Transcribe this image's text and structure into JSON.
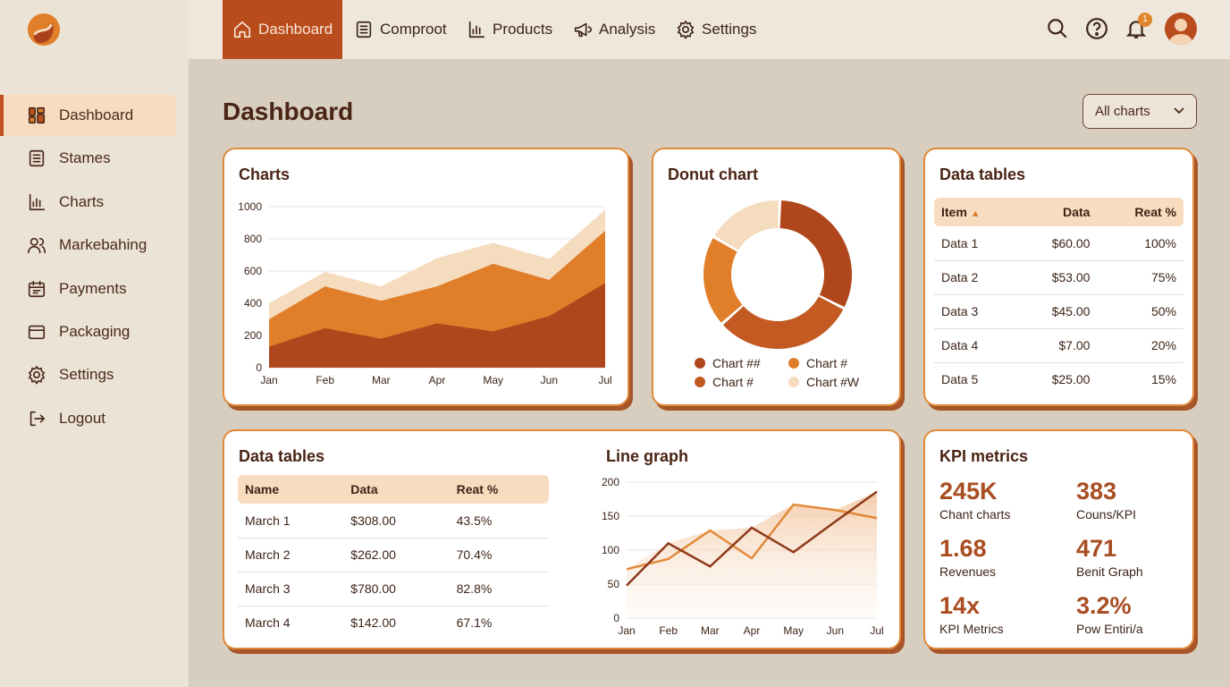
{
  "brand": {
    "logo": "swirl-logo"
  },
  "sidebar": {
    "items": [
      {
        "label": "Dashboard",
        "icon": "grid-icon",
        "active": true
      },
      {
        "label": "Stames",
        "icon": "document-icon"
      },
      {
        "label": "Charts",
        "icon": "bar-chart-icon"
      },
      {
        "label": "Markebahing",
        "icon": "users-icon"
      },
      {
        "label": "Payments",
        "icon": "calendar-icon"
      },
      {
        "label": "Packaging",
        "icon": "card-icon"
      },
      {
        "label": "Settings",
        "icon": "gear-icon"
      },
      {
        "label": "Logout",
        "icon": "logout-icon"
      }
    ]
  },
  "topnav": {
    "tabs": [
      {
        "label": "Dashboard",
        "icon": "home-icon",
        "active": true
      },
      {
        "label": "Comproot",
        "icon": "document-icon"
      },
      {
        "label": "Products",
        "icon": "bar-chart-icon"
      },
      {
        "label": "Analysis",
        "icon": "megaphone-icon"
      },
      {
        "label": "Settings",
        "icon": "gear-icon"
      }
    ],
    "notifications": "1"
  },
  "page": {
    "title": "Dashboard",
    "filter": "All charts"
  },
  "colors": {
    "dark": "#b0461c",
    "orange": "#e07e2a",
    "mid": "#c25a22",
    "light": "#f5dcbf",
    "border": "#e08a3a"
  },
  "area_card": {
    "title": "Charts"
  },
  "donut_card": {
    "title": "Donut chart"
  },
  "table1": {
    "title": "Data tables",
    "headers": [
      "Item",
      "Data",
      "Reat %"
    ],
    "rows": [
      [
        "Data 1",
        "$60.00",
        "100%"
      ],
      [
        "Data 2",
        "$53.00",
        "75%"
      ],
      [
        "Data 3",
        "$45.00",
        "50%"
      ],
      [
        "Data 4",
        "$7.00",
        "20%"
      ],
      [
        "Data 5",
        "$25.00",
        "15%"
      ]
    ]
  },
  "table2": {
    "title": "Data tables",
    "headers": [
      "Name",
      "Data",
      "Reat %"
    ],
    "rows": [
      [
        "March 1",
        "$308.00",
        "43.5%"
      ],
      [
        "March 2",
        "$262.00",
        "70.4%"
      ],
      [
        "March 3",
        "$780.00",
        "82.8%"
      ],
      [
        "March 4",
        "$142.00",
        "67.1%"
      ]
    ]
  },
  "line_card": {
    "title": "Line graph"
  },
  "kpi": {
    "title": "KPI metrics",
    "items": [
      {
        "value": "245K",
        "label": "Chant charts"
      },
      {
        "value": "383",
        "label": "Couns/KPI"
      },
      {
        "value": "1.68",
        "label": "Revenues"
      },
      {
        "value": "471",
        "label": "Benit Graph"
      },
      {
        "value": "14x",
        "label": "KPI Metrics"
      },
      {
        "value": "3.2%",
        "label": "Pow Entiri/a"
      }
    ]
  },
  "chart_data": [
    {
      "type": "area",
      "stacked": true,
      "categories": [
        "Jan",
        "Feb",
        "Mar",
        "Apr",
        "May",
        "Jun",
        "Jul"
      ],
      "ylim": [
        0,
        1000
      ],
      "yticks": [
        0,
        200,
        400,
        600,
        800,
        1000
      ],
      "grid": true,
      "series": [
        {
          "values": [
            130,
            245,
            180,
            275,
            225,
            320,
            525
          ],
          "color": "#b0461c"
        },
        {
          "values": [
            170,
            260,
            235,
            230,
            420,
            225,
            325
          ],
          "color": "#e07e2a"
        },
        {
          "values": [
            100,
            90,
            90,
            175,
            130,
            130,
            130
          ],
          "color": "#f5dcbf"
        }
      ]
    },
    {
      "type": "pie",
      "donut": true,
      "slices": [
        {
          "name": "Chart ##",
          "value": 32,
          "color": "#b0461c"
        },
        {
          "name": "Chart #",
          "value": 31,
          "color": "#c25a22"
        },
        {
          "name": "Chart #",
          "value": 20,
          "color": "#e07e2a"
        },
        {
          "name": "Chart #W",
          "value": 17,
          "color": "#f5dcbf"
        }
      ],
      "legend": [
        "Chart ##",
        "Chart #",
        "Chart #",
        "Chart #W"
      ],
      "legend_colors": [
        "#b0461c",
        "#e07e2a",
        "#c25a22",
        "#f5dcbf"
      ],
      "legend_placement": "bottom"
    },
    {
      "type": "line",
      "categories": [
        "Jan",
        "Feb",
        "Mar",
        "Apr",
        "May",
        "Jun",
        "Jul"
      ],
      "ylim": [
        0,
        200
      ],
      "yticks": [
        0,
        50,
        100,
        150,
        200
      ],
      "grid": true,
      "series": [
        {
          "values": [
            48,
            110,
            76,
            133,
            97,
            142,
            186
          ],
          "color": "#8e3a1a"
        },
        {
          "values": [
            72,
            87,
            129,
            88,
            167,
            159,
            147
          ],
          "color": "#e08a3a"
        }
      ]
    }
  ]
}
